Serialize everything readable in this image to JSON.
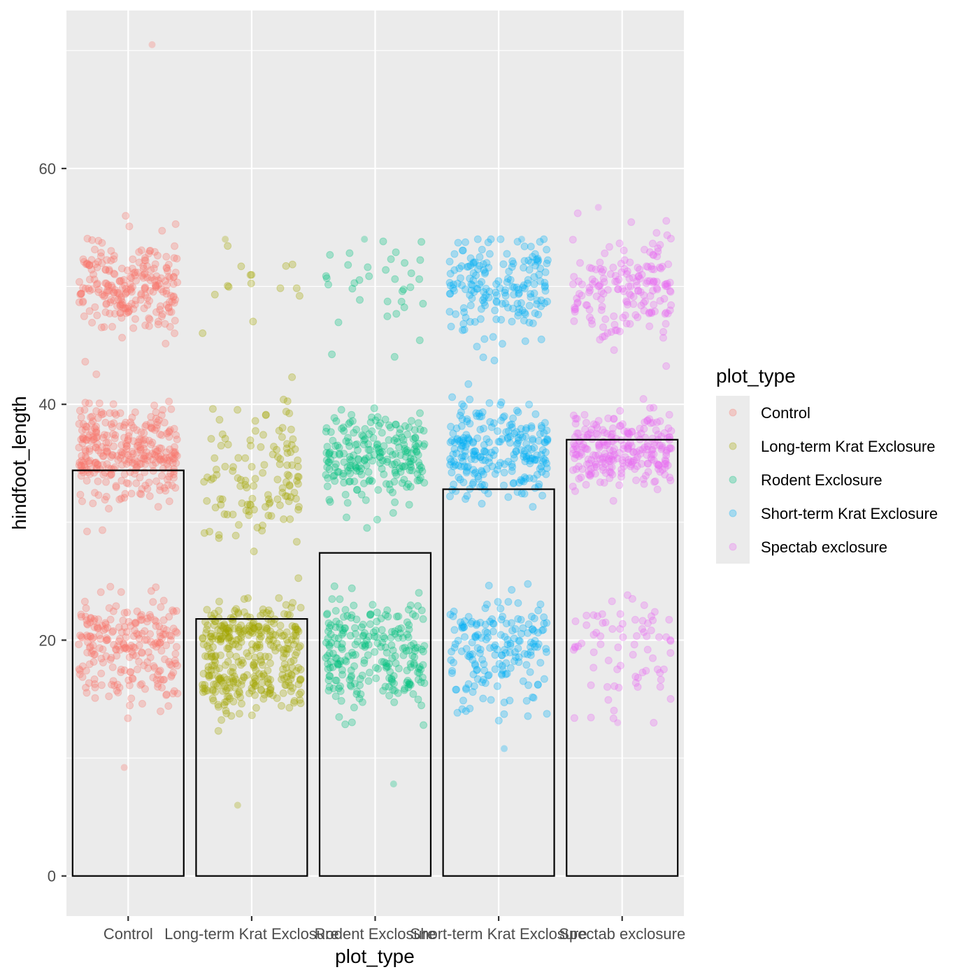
{
  "chart_data": {
    "type": "scatter",
    "layers": [
      "jittered points",
      "bar"
    ],
    "xlabel": "plot_type",
    "ylabel": "hindfoot_length",
    "categories": [
      "Control",
      "Long-term Krat Exclosure",
      "Rodent Exclosure",
      "Short-term Krat Exclosure",
      "Spectab exclosure"
    ],
    "ylim": [
      -3.4,
      73.4
    ],
    "y_major_ticks": [
      0,
      20,
      40,
      60
    ],
    "y_minor_ticks": [
      10,
      30,
      50,
      70
    ],
    "grid": true,
    "bar_values": [
      34.4,
      21.8,
      27.4,
      32.8,
      37.0
    ],
    "point_alpha": 0.3,
    "point_groups": [
      {
        "category": "Control",
        "n": 800,
        "min": 9.2,
        "max": 70.5,
        "clusters": [
          {
            "center": 50,
            "sd": 2,
            "share": 0.3
          },
          {
            "center": 36,
            "sd": 2,
            "share": 0.4
          },
          {
            "center": 20.5,
            "sd": 1.5,
            "share": 0.2
          },
          {
            "center": 16.5,
            "sd": 1.5,
            "share": 0.1
          }
        ]
      },
      {
        "category": "Long-term Krat Exclosure",
        "n": 500,
        "min": 6,
        "max": 54,
        "clusters": [
          {
            "center": 50,
            "sd": 3,
            "share": 0.03
          },
          {
            "center": 34,
            "sd": 3,
            "share": 0.25
          },
          {
            "center": 20.5,
            "sd": 1.3,
            "share": 0.4
          },
          {
            "center": 16.5,
            "sd": 1.3,
            "share": 0.32
          }
        ]
      },
      {
        "category": "Rodent Exclosure",
        "n": 500,
        "min": 7.8,
        "max": 54,
        "clusters": [
          {
            "center": 50,
            "sd": 2.5,
            "share": 0.07
          },
          {
            "center": 35.5,
            "sd": 1.8,
            "share": 0.45
          },
          {
            "center": 20.5,
            "sd": 1.5,
            "share": 0.27
          },
          {
            "center": 16.5,
            "sd": 1.5,
            "share": 0.21
          }
        ]
      },
      {
        "category": "Short-term Krat Exclosure",
        "n": 600,
        "min": 10.8,
        "max": 54,
        "clusters": [
          {
            "center": 50,
            "sd": 2,
            "share": 0.3
          },
          {
            "center": 36,
            "sd": 2,
            "share": 0.4
          },
          {
            "center": 20.5,
            "sd": 1.5,
            "share": 0.18
          },
          {
            "center": 17,
            "sd": 1.5,
            "share": 0.12
          }
        ]
      },
      {
        "category": "Spectab exclosure",
        "n": 500,
        "min": 13,
        "max": 56.7,
        "clusters": [
          {
            "center": 50,
            "sd": 2.5,
            "share": 0.35
          },
          {
            "center": 36,
            "sd": 1.5,
            "share": 0.5
          },
          {
            "center": 21,
            "sd": 1,
            "share": 0.09
          },
          {
            "center": 17,
            "sd": 2,
            "share": 0.06
          }
        ]
      }
    ],
    "legend": {
      "title": "plot_type",
      "placement": "right",
      "entries": [
        "Control",
        "Long-term Krat Exclosure",
        "Rodent Exclosure",
        "Short-term Krat Exclosure",
        "Spectab exclosure"
      ]
    },
    "colors": [
      "#F8766D",
      "#A3A500",
      "#00BF7D",
      "#00B0F6",
      "#E76BF3"
    ],
    "panel_background": "#EBEBEB"
  }
}
